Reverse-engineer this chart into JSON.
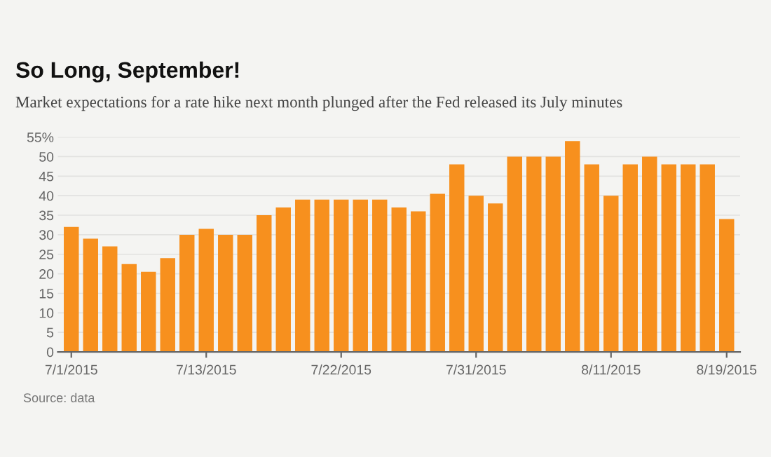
{
  "chart_data": {
    "type": "bar",
    "title": "So Long, September!",
    "subtitle": "Market expectations for a rate hike next month plunged after the Fed released its July minutes",
    "categories": [
      "7/1/2015",
      null,
      null,
      null,
      null,
      null,
      null,
      "7/13/2015",
      null,
      null,
      null,
      null,
      null,
      null,
      "7/22/2015",
      null,
      null,
      null,
      null,
      null,
      null,
      "7/31/2015",
      null,
      null,
      null,
      null,
      null,
      null,
      "8/11/2015",
      null,
      null,
      null,
      null,
      null,
      "8/19/2015"
    ],
    "values": [
      32,
      29,
      27,
      22.5,
      20.5,
      24,
      30,
      31.5,
      30,
      30,
      35,
      37,
      39,
      39,
      39,
      39,
      39,
      37,
      36,
      40.5,
      48,
      40,
      38,
      50,
      50,
      50,
      54,
      48,
      40,
      48,
      50,
      48,
      48,
      48,
      34
    ],
    "color": "#f7901e",
    "ylim": [
      0,
      55
    ],
    "yticks": [
      0,
      5,
      10,
      15,
      20,
      25,
      30,
      35,
      40,
      45,
      50,
      {
        "value": 55,
        "label": "55%"
      }
    ],
    "grid": "y",
    "annotations": [
      "Source: data"
    ]
  }
}
